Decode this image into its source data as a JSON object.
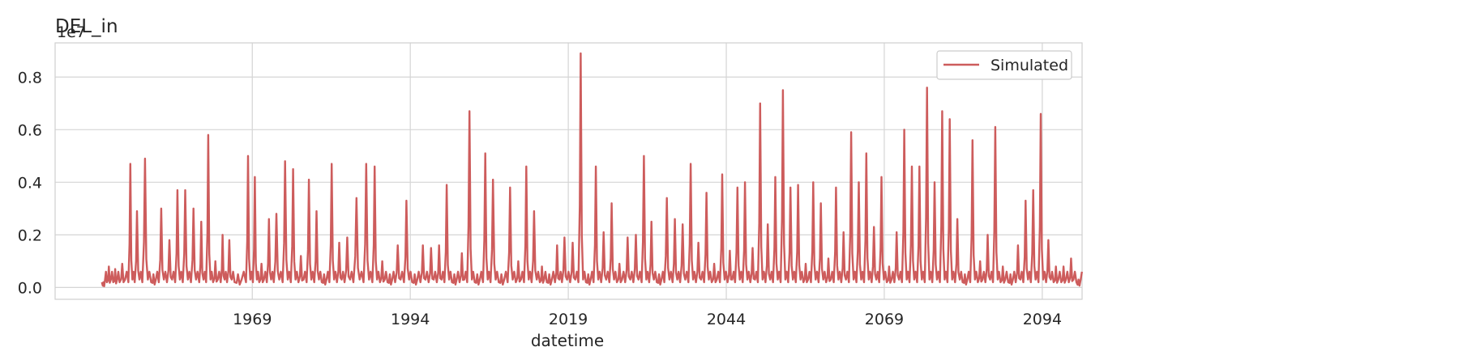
{
  "chart_data": {
    "type": "line",
    "title": "DEL_in",
    "xlabel": "datetime",
    "ylabel": "",
    "y_offset_label": "1e7",
    "x_tick_labels": [
      "1969",
      "1994",
      "2019",
      "2044",
      "2069",
      "2094"
    ],
    "y_tick_labels": [
      "0.0",
      "0.2",
      "0.4",
      "0.6",
      "0.8"
    ],
    "xlim": [
      1937.8,
      2100.3
    ],
    "ylim": [
      -0.045,
      0.93
    ],
    "x_ticks": [
      1969,
      1994,
      2019,
      2044,
      2069,
      2094
    ],
    "y_ticks": [
      0.0,
      0.2,
      0.4,
      0.6,
      0.8
    ],
    "grid": true,
    "legend": {
      "position": "top-right",
      "entries": [
        "Simulated"
      ]
    },
    "series": [
      {
        "name": "Simulated",
        "color": "#cd5c5c",
        "x": [
          1945.2,
          1946.0,
          1947.0,
          1948.0,
          1949.4,
          1950.4,
          1951.6,
          1953.0,
          1954.2,
          1955.5,
          1956.8,
          1958.0,
          1959.3,
          1960.6,
          1961.7,
          1962.8,
          1964.0,
          1965.0,
          1966.2,
          1968.0,
          1969.1,
          1970.1,
          1971.3,
          1972.4,
          1973.8,
          1975.1,
          1976.3,
          1977.6,
          1978.8,
          1980.0,
          1981.2,
          1982.4,
          1983.6,
          1985.0,
          1986.6,
          1988.0,
          1989.2,
          1990.4,
          1991.6,
          1993.0,
          1994.3,
          1995.6,
          1996.9,
          1998.2,
          1999.4,
          2000.6,
          2001.8,
          2003.0,
          2004.2,
          2005.5,
          2006.7,
          2008.0,
          2009.4,
          2010.7,
          2012.0,
          2013.2,
          2014.5,
          2015.6,
          2016.9,
          2018.0,
          2019.3,
          2020.6,
          2021.8,
          2023.0,
          2024.2,
          2025.5,
          2026.7,
          2028.0,
          2029.3,
          2030.6,
          2031.8,
          2033.0,
          2034.2,
          2035.5,
          2036.7,
          2038.0,
          2039.2,
          2040.5,
          2041.7,
          2043.0,
          2044.2,
          2045.4,
          2046.6,
          2047.8,
          2049.0,
          2050.2,
          2051.4,
          2052.6,
          2053.8,
          2055.0,
          2056.2,
          2057.4,
          2058.6,
          2059.8,
          2061.0,
          2062.2,
          2063.4,
          2064.6,
          2065.8,
          2067.0,
          2068.2,
          2069.4,
          2070.6,
          2071.8,
          2073.0,
          2074.2,
          2075.4,
          2076.6,
          2077.8,
          2079.0,
          2080.2,
          2081.4,
          2082.6,
          2083.8,
          2085.0,
          2086.2,
          2087.4,
          2088.6,
          2089.8,
          2091.0,
          2092.2,
          2093.4,
          2094.6,
          2095.8,
          2097.0,
          2098.2,
          2099.4
        ],
        "values": [
          0.02,
          0.08,
          0.07,
          0.09,
          0.47,
          0.29,
          0.49,
          0.05,
          0.3,
          0.18,
          0.37,
          0.37,
          0.3,
          0.25,
          0.58,
          0.1,
          0.2,
          0.18,
          0.05,
          0.5,
          0.42,
          0.09,
          0.26,
          0.28,
          0.48,
          0.45,
          0.12,
          0.41,
          0.29,
          0.05,
          0.47,
          0.17,
          0.19,
          0.34,
          0.47,
          0.46,
          0.1,
          0.05,
          0.16,
          0.33,
          0.05,
          0.16,
          0.15,
          0.16,
          0.39,
          0.05,
          0.13,
          0.67,
          0.05,
          0.51,
          0.41,
          0.05,
          0.38,
          0.1,
          0.46,
          0.29,
          0.08,
          0.05,
          0.16,
          0.19,
          0.17,
          0.89,
          0.05,
          0.46,
          0.21,
          0.32,
          0.09,
          0.19,
          0.2,
          0.5,
          0.25,
          0.05,
          0.34,
          0.26,
          0.24,
          0.47,
          0.17,
          0.36,
          0.09,
          0.43,
          0.14,
          0.38,
          0.4,
          0.15,
          0.7,
          0.24,
          0.42,
          0.75,
          0.38,
          0.39,
          0.09,
          0.4,
          0.32,
          0.11,
          0.38,
          0.21,
          0.59,
          0.4,
          0.51,
          0.23,
          0.42,
          0.08,
          0.21,
          0.6,
          0.46,
          0.46,
          0.76,
          0.4,
          0.67,
          0.64,
          0.26,
          0.05,
          0.56,
          0.1,
          0.2,
          0.61,
          0.08,
          0.05,
          0.16,
          0.33,
          0.37,
          0.66,
          0.18,
          0.08,
          0.08,
          0.11,
          0.03
        ]
      }
    ]
  }
}
